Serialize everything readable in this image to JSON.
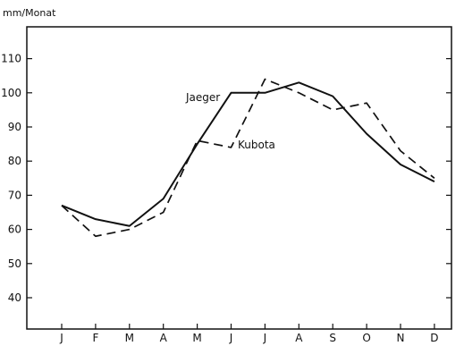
{
  "chart_data": {
    "type": "line",
    "ylabel": "mm/Monat",
    "ylim": [
      30,
      120
    ],
    "yticks": [
      40,
      50,
      60,
      70,
      80,
      90,
      100,
      110
    ],
    "categories": [
      "J",
      "F",
      "M",
      "A",
      "M",
      "J",
      "J",
      "A",
      "S",
      "O",
      "N",
      "D"
    ],
    "series": [
      {
        "name": "Jaeger",
        "style": "solid",
        "values": [
          67,
          63,
          61,
          69,
          85,
          100,
          100,
          103,
          99,
          88,
          79,
          74
        ]
      },
      {
        "name": "Kubota",
        "style": "dashed",
        "values": [
          67,
          58,
          60,
          65,
          86,
          84,
          104,
          100,
          95,
          97,
          83,
          75
        ]
      }
    ],
    "grid": false,
    "color": "#111111"
  }
}
